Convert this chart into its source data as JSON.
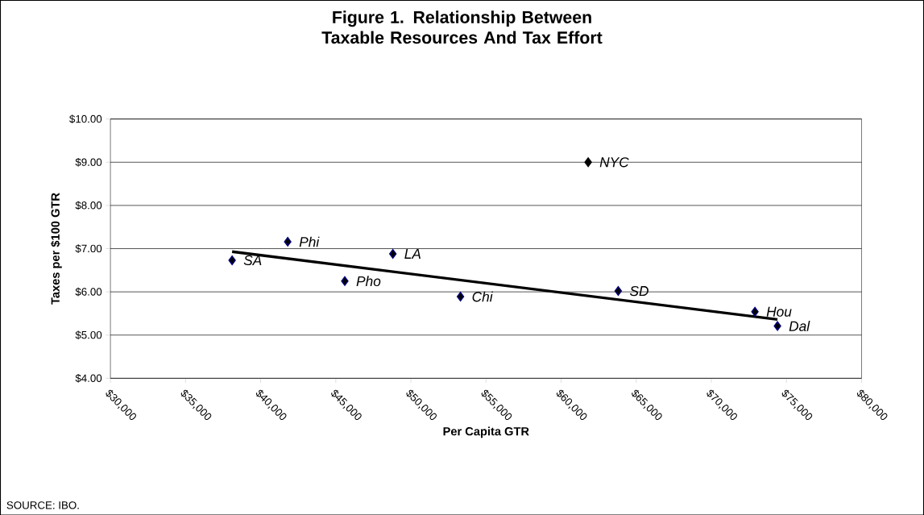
{
  "chart_data": {
    "type": "scatter",
    "title": "Figure 1. Relationship Between Taxable Resources And Tax Effort",
    "xlabel": "Per Capita GTR",
    "ylabel": "Taxes per $100 GTR",
    "series": [
      {
        "x": [
          38100,
          41800,
          45600,
          48800,
          53300,
          61800,
          63800,
          72900,
          74400
        ],
        "values": [
          6.73,
          7.16,
          6.25,
          6.88,
          5.89,
          9.0,
          6.02,
          5.54,
          5.21
        ],
        "colors": [
          "#000080",
          "#000080",
          "#000080",
          "#000080",
          "#000080",
          "#000000",
          "#000080",
          "#000080",
          "#000080"
        ],
        "marker": "diamond"
      },
      {
        "type": "line",
        "x": [
          38100,
          74400
        ],
        "values": [
          6.93,
          5.36
        ],
        "color": "#000000",
        "marker": "none"
      }
    ],
    "xlim": [
      30000,
      80000
    ],
    "xticks": [
      {
        "value": 30000,
        "label": "$30,000"
      },
      {
        "value": 35000,
        "label": "$35,000"
      },
      {
        "value": 40000,
        "label": "$40,000"
      },
      {
        "value": 45000,
        "label": "$45,000"
      },
      {
        "value": 50000,
        "label": "$50,000"
      },
      {
        "value": 55000,
        "label": "$55,000"
      },
      {
        "value": 60000,
        "label": "$60,000"
      },
      {
        "value": 65000,
        "label": "$65,000"
      },
      {
        "value": 70000,
        "label": "$70,000"
      },
      {
        "value": 75000,
        "label": "$75,000"
      },
      {
        "value": 80000,
        "label": "$80,000"
      }
    ],
    "ylim": [
      4,
      10
    ],
    "yticks": [
      {
        "value": 4,
        "label": "$4.00"
      },
      {
        "value": 5,
        "label": "$5.00"
      },
      {
        "value": 6,
        "label": "$6.00"
      },
      {
        "value": 7,
        "label": "$7.00"
      },
      {
        "value": 8,
        "label": "$8.00"
      },
      {
        "value": 9,
        "label": "$9.00"
      },
      {
        "value": 10,
        "label": "$10.00"
      }
    ],
    "grid": "y",
    "annotations": [
      {
        "text": "SA",
        "x": 38100,
        "y": 6.73
      },
      {
        "text": "Phi",
        "x": 41800,
        "y": 7.16
      },
      {
        "text": "Pho",
        "x": 45600,
        "y": 6.25
      },
      {
        "text": "LA",
        "x": 48800,
        "y": 6.88
      },
      {
        "text": "Chi",
        "x": 53300,
        "y": 5.89
      },
      {
        "text": "NYC",
        "x": 61800,
        "y": 9.0
      },
      {
        "text": "SD",
        "x": 63800,
        "y": 6.02
      },
      {
        "text": "Hou",
        "x": 72900,
        "y": 5.54
      },
      {
        "text": "Dal",
        "x": 74400,
        "y": 5.21
      },
      "SOURCE: IBO."
    ]
  }
}
